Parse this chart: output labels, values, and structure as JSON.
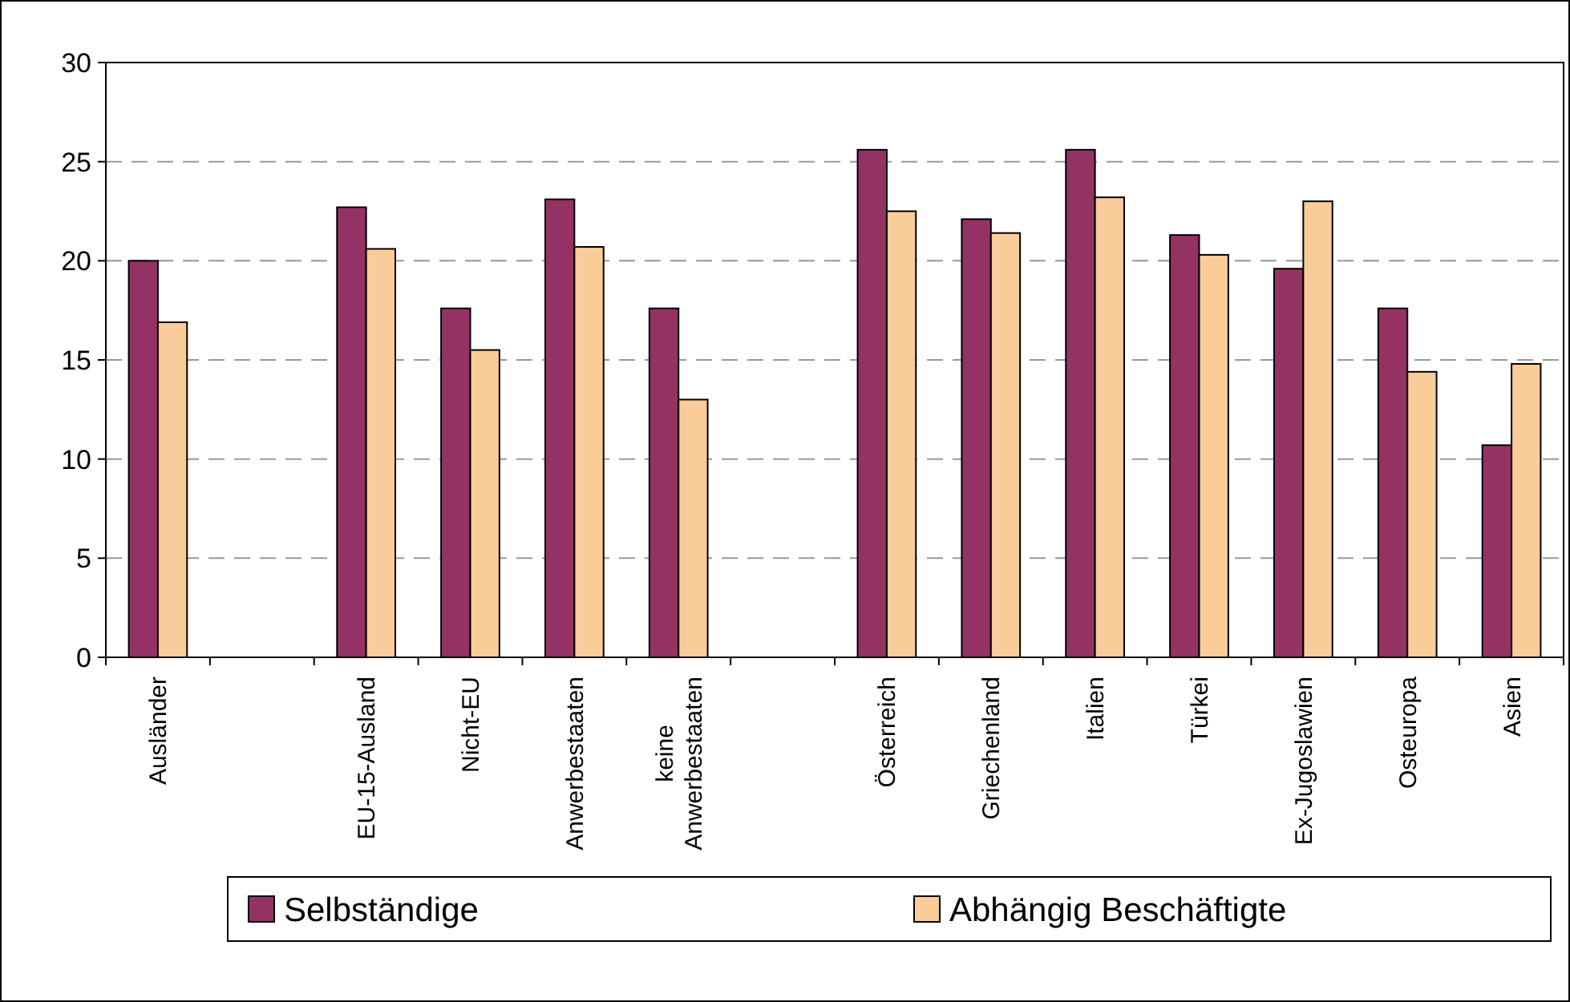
{
  "chart_data": {
    "type": "bar",
    "categories": [
      "Ausländer",
      null,
      "EU-15-Ausland",
      "Nicht-EU",
      "Anwerbestaaten",
      "keine Anwerbestaaten",
      null,
      "Österreich",
      "Griechenland",
      "Italien",
      "Türkei",
      "Ex-Jugoslawien",
      "Osteuropa",
      "Asien"
    ],
    "series": [
      {
        "name": "Selbständige",
        "color": "#943363",
        "values": [
          20.0,
          null,
          22.7,
          17.6,
          23.1,
          17.6,
          null,
          25.6,
          22.1,
          25.6,
          21.3,
          19.6,
          17.6,
          10.7
        ]
      },
      {
        "name": "Abhängig Beschäftigte",
        "color": "#f9cc9a",
        "values": [
          16.9,
          null,
          20.6,
          15.5,
          20.7,
          13.0,
          null,
          22.5,
          21.4,
          23.2,
          20.3,
          23.0,
          14.4,
          14.8
        ]
      }
    ],
    "ylim": [
      0,
      30
    ],
    "yticks": [
      0,
      5,
      10,
      15,
      20,
      25,
      30
    ],
    "grid": "y",
    "legend": "bottom"
  }
}
